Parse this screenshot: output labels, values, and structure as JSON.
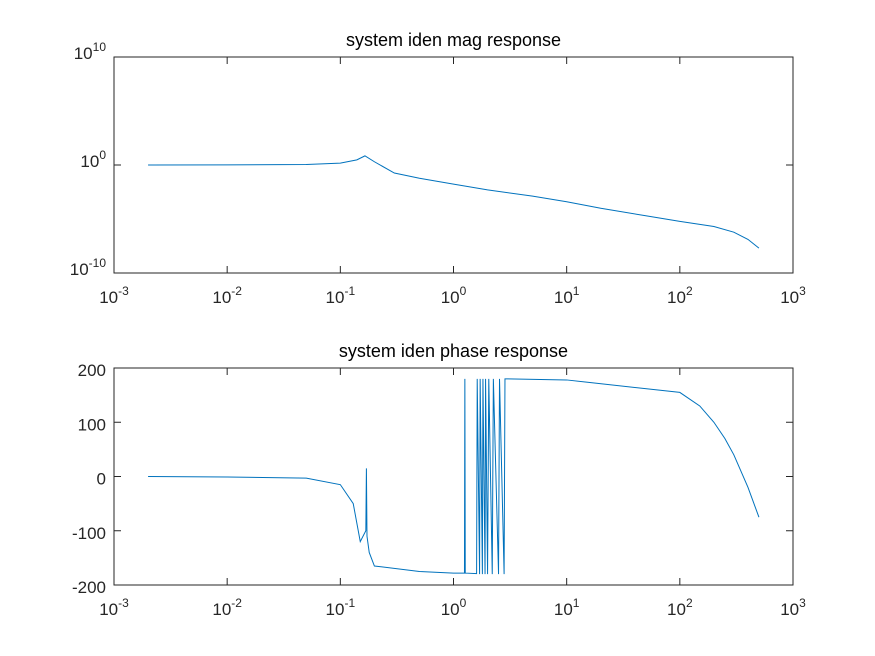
{
  "chart_data": [
    {
      "type": "line",
      "title": "system iden mag response",
      "xscale": "log",
      "yscale": "log",
      "xlim": [
        0.001,
        1000
      ],
      "ylim": [
        1e-10,
        10000000000.0
      ],
      "xticks": [
        {
          "value": 0.001,
          "label": "10",
          "exponent": "-3"
        },
        {
          "value": 0.01,
          "label": "10",
          "exponent": "-2"
        },
        {
          "value": 0.1,
          "label": "10",
          "exponent": "-1"
        },
        {
          "value": 1,
          "label": "10",
          "exponent": "0"
        },
        {
          "value": 10,
          "label": "10",
          "exponent": "1"
        },
        {
          "value": 100,
          "label": "10",
          "exponent": "2"
        },
        {
          "value": 1000,
          "label": "10",
          "exponent": "3"
        }
      ],
      "yticks": [
        {
          "value": 1e-10,
          "label": "10",
          "exponent": "-10"
        },
        {
          "value": 1,
          "label": "10",
          "exponent": "0"
        },
        {
          "value": 10000000000.0,
          "label": "10",
          "exponent": "10"
        }
      ],
      "color": "#0072bd",
      "x": [
        0.002,
        0.01,
        0.05,
        0.1,
        0.14,
        0.165,
        0.2,
        0.3,
        0.5,
        1,
        2,
        5,
        10,
        20,
        50,
        100,
        200,
        300,
        400,
        500
      ],
      "values": [
        1,
        1.02,
        1.1,
        1.5,
        3,
        7,
        2,
        0.18,
        0.06,
        0.017,
        0.005,
        0.0013,
        0.0004,
        0.0001,
        2e-05,
        6e-06,
        2e-06,
        6e-07,
        1.3e-07,
        2e-08
      ]
    },
    {
      "type": "line",
      "title": "system iden phase response",
      "xscale": "log",
      "yscale": "linear",
      "xlim": [
        0.001,
        1000
      ],
      "ylim": [
        -200,
        200
      ],
      "xticks": [
        {
          "value": 0.001,
          "label": "10",
          "exponent": "-3"
        },
        {
          "value": 0.01,
          "label": "10",
          "exponent": "-2"
        },
        {
          "value": 0.1,
          "label": "10",
          "exponent": "-1"
        },
        {
          "value": 1,
          "label": "10",
          "exponent": "0"
        },
        {
          "value": 10,
          "label": "10",
          "exponent": "1"
        },
        {
          "value": 100,
          "label": "10",
          "exponent": "2"
        },
        {
          "value": 1000,
          "label": "10",
          "exponent": "3"
        }
      ],
      "yticks": [
        -200,
        -100,
        0,
        100,
        200
      ],
      "color": "#0072bd",
      "x": [
        0.002,
        0.01,
        0.05,
        0.1,
        0.13,
        0.15,
        0.168,
        0.17,
        0.172,
        0.18,
        0.2,
        0.5,
        1,
        1.25,
        1.26,
        1.27,
        1.6,
        1.62,
        1.7,
        1.72,
        1.8,
        1.82,
        1.9,
        1.92,
        2.0,
        2.05,
        2.2,
        2.25,
        2.5,
        2.55,
        2.8,
        2.85,
        3,
        10,
        100,
        150,
        200,
        250,
        300,
        400,
        500
      ],
      "values": [
        0,
        -1,
        -3,
        -15,
        -50,
        -120,
        -100,
        15,
        -110,
        -140,
        -165,
        -175,
        -178,
        -178,
        180,
        -178,
        -179,
        180,
        -180,
        180,
        -180,
        180,
        -180,
        180,
        -180,
        180,
        -180,
        180,
        -180,
        180,
        -180,
        180,
        180,
        178,
        155,
        130,
        100,
        70,
        40,
        -20,
        -75
      ]
    }
  ]
}
